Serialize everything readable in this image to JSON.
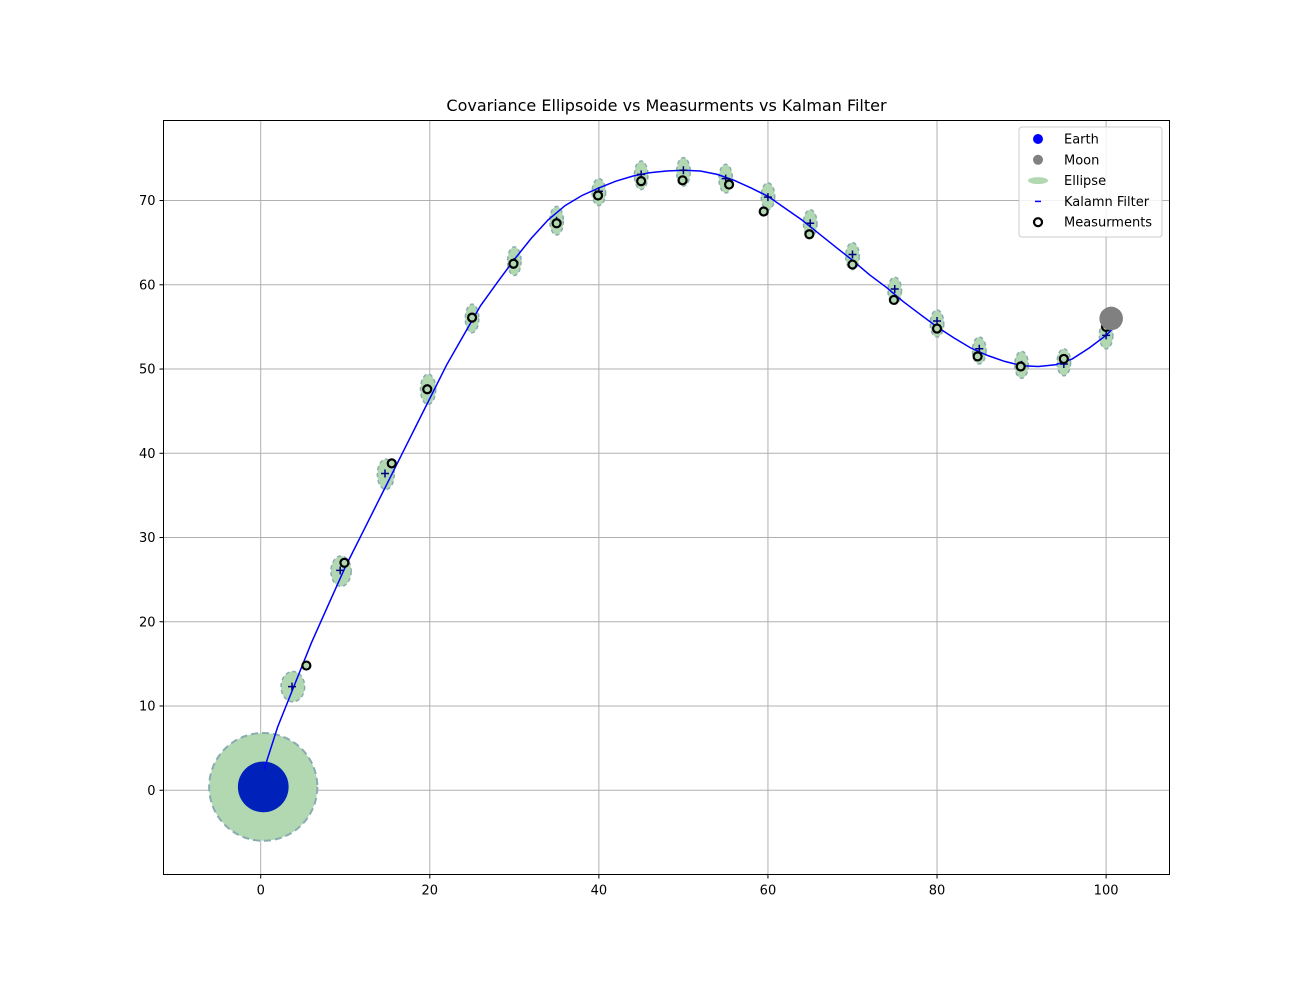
{
  "chart_data": {
    "type": "scatter",
    "title": "Covariance Ellipsoide vs Measurments vs Kalman Filter",
    "xlabel": "",
    "ylabel": "",
    "xlim": [
      -11.5,
      107.5
    ],
    "ylim": [
      -10,
      79.5
    ],
    "xticks": [
      0,
      20,
      40,
      60,
      80,
      100
    ],
    "yticks": [
      0,
      10,
      20,
      30,
      40,
      50,
      60,
      70
    ],
    "grid": true,
    "legend_position": "top-right",
    "legend": [
      {
        "key": "earth",
        "label": "Earth"
      },
      {
        "key": "moon",
        "label": "Moon"
      },
      {
        "key": "ellipse",
        "label": "Ellipse"
      },
      {
        "key": "kalman",
        "label": "Kalamn Filter"
      },
      {
        "key": "measurements",
        "label": "Measurments"
      }
    ],
    "colors": {
      "earth": "#0000ff",
      "earth_body": "#0022bb",
      "moon": "#808080",
      "ellipse_fill": "#b2d8b2",
      "ellipse_edge": "#8aabb2",
      "kalman": "#0000ff",
      "measurement_edge": "#000000",
      "grid": "#b0b0b0"
    },
    "earth": {
      "x": 0.3,
      "y": 0.4,
      "radius": 3
    },
    "moon": {
      "x": 100.6,
      "y": 56,
      "radius": 1.4
    },
    "initial_ellipse": {
      "x": 0.3,
      "y": 0.4,
      "rx": 6.4,
      "ry": 6.4
    },
    "kalman_filter": {
      "x": [
        0.4,
        2,
        4,
        6,
        8,
        10,
        12,
        14,
        16,
        18,
        20,
        22,
        24,
        26,
        28,
        30,
        32,
        34,
        36,
        38,
        40,
        42,
        44,
        46,
        48,
        50,
        52,
        54,
        56,
        58,
        60,
        62,
        64,
        66,
        68,
        70,
        72,
        74,
        76,
        78,
        80,
        82,
        84,
        86,
        88,
        90,
        92,
        94,
        96,
        98,
        100,
        101
      ],
      "y": [
        2.5,
        7.5,
        12.5,
        17.5,
        22,
        26.5,
        30.5,
        34.5,
        38.5,
        42.5,
        46.5,
        50.5,
        54,
        57.5,
        60.3,
        63,
        65.5,
        67.7,
        69.4,
        70.6,
        71.5,
        72.3,
        72.9,
        73.3,
        73.5,
        73.6,
        73.5,
        73.1,
        72.4,
        71.5,
        70.5,
        69.1,
        67.7,
        66.1,
        64.5,
        62.9,
        61.2,
        59.7,
        58,
        56.5,
        55,
        53.7,
        52.5,
        51.6,
        50.9,
        50.4,
        50.3,
        50.5,
        51.2,
        52.5,
        54,
        55
      ]
    },
    "ellipses": [
      {
        "x": 3.8,
        "y": 12.3,
        "rx": 1.4,
        "ry": 1.8
      },
      {
        "x": 9.5,
        "y": 26,
        "rx": 1.2,
        "ry": 1.8
      },
      {
        "x": 14.8,
        "y": 37.5,
        "rx": 1,
        "ry": 1.8
      },
      {
        "x": 19.8,
        "y": 47.6,
        "rx": 0.9,
        "ry": 1.8
      },
      {
        "x": 25,
        "y": 56,
        "rx": 0.8,
        "ry": 1.7
      },
      {
        "x": 30,
        "y": 62.8,
        "rx": 0.8,
        "ry": 1.7
      },
      {
        "x": 35,
        "y": 67.6,
        "rx": 0.8,
        "ry": 1.7
      },
      {
        "x": 40,
        "y": 71,
        "rx": 0.8,
        "ry": 1.6
      },
      {
        "x": 45,
        "y": 73,
        "rx": 0.8,
        "ry": 1.7
      },
      {
        "x": 50,
        "y": 73.4,
        "rx": 0.8,
        "ry": 1.7
      },
      {
        "x": 55,
        "y": 72.6,
        "rx": 0.8,
        "ry": 1.7
      },
      {
        "x": 60,
        "y": 70.5,
        "rx": 0.8,
        "ry": 1.6
      },
      {
        "x": 65,
        "y": 67.3,
        "rx": 0.8,
        "ry": 1.6
      },
      {
        "x": 70,
        "y": 63.4,
        "rx": 0.8,
        "ry": 1.6
      },
      {
        "x": 75,
        "y": 59.3,
        "rx": 0.8,
        "ry": 1.6
      },
      {
        "x": 80,
        "y": 55.4,
        "rx": 0.8,
        "ry": 1.6
      },
      {
        "x": 85,
        "y": 52.2,
        "rx": 0.8,
        "ry": 1.6
      },
      {
        "x": 90,
        "y": 50.5,
        "rx": 0.8,
        "ry": 1.6
      },
      {
        "x": 95,
        "y": 50.8,
        "rx": 0.8,
        "ry": 1.6
      },
      {
        "x": 100,
        "y": 54,
        "rx": 0.8,
        "ry": 1.6
      }
    ],
    "estimates": [
      {
        "x": 3.7,
        "y": 12.3
      },
      {
        "x": 9.4,
        "y": 26.1
      },
      {
        "x": 14.7,
        "y": 37.6
      },
      {
        "x": 19.7,
        "y": 47.7
      },
      {
        "x": 25,
        "y": 56
      },
      {
        "x": 30,
        "y": 62.7
      },
      {
        "x": 35,
        "y": 67.6
      },
      {
        "x": 40,
        "y": 71.1
      },
      {
        "x": 45,
        "y": 73.1
      },
      {
        "x": 50,
        "y": 73.6
      },
      {
        "x": 55,
        "y": 72.6
      },
      {
        "x": 60,
        "y": 70.4
      },
      {
        "x": 65,
        "y": 67.3
      },
      {
        "x": 70,
        "y": 63.6
      },
      {
        "x": 75,
        "y": 59.5
      },
      {
        "x": 80,
        "y": 55.7
      },
      {
        "x": 85,
        "y": 52.4
      },
      {
        "x": 90,
        "y": 50.5
      },
      {
        "x": 95,
        "y": 50.6
      },
      {
        "x": 100,
        "y": 54
      }
    ],
    "measurements": [
      {
        "x": 5.4,
        "y": 14.8
      },
      {
        "x": 9.9,
        "y": 27
      },
      {
        "x": 15.5,
        "y": 38.8
      },
      {
        "x": 19.7,
        "y": 47.6
      },
      {
        "x": 25,
        "y": 56.1
      },
      {
        "x": 29.9,
        "y": 62.5
      },
      {
        "x": 35,
        "y": 67.3
      },
      {
        "x": 39.9,
        "y": 70.6
      },
      {
        "x": 45,
        "y": 72.3
      },
      {
        "x": 49.9,
        "y": 72.4
      },
      {
        "x": 55.4,
        "y": 71.9
      },
      {
        "x": 59.5,
        "y": 68.7
      },
      {
        "x": 64.9,
        "y": 66
      },
      {
        "x": 70,
        "y": 62.4
      },
      {
        "x": 74.9,
        "y": 58.2
      },
      {
        "x": 80,
        "y": 54.8
      },
      {
        "x": 84.8,
        "y": 51.5
      },
      {
        "x": 89.9,
        "y": 50.3
      },
      {
        "x": 95,
        "y": 51.2
      },
      {
        "x": 100,
        "y": 55
      }
    ]
  }
}
